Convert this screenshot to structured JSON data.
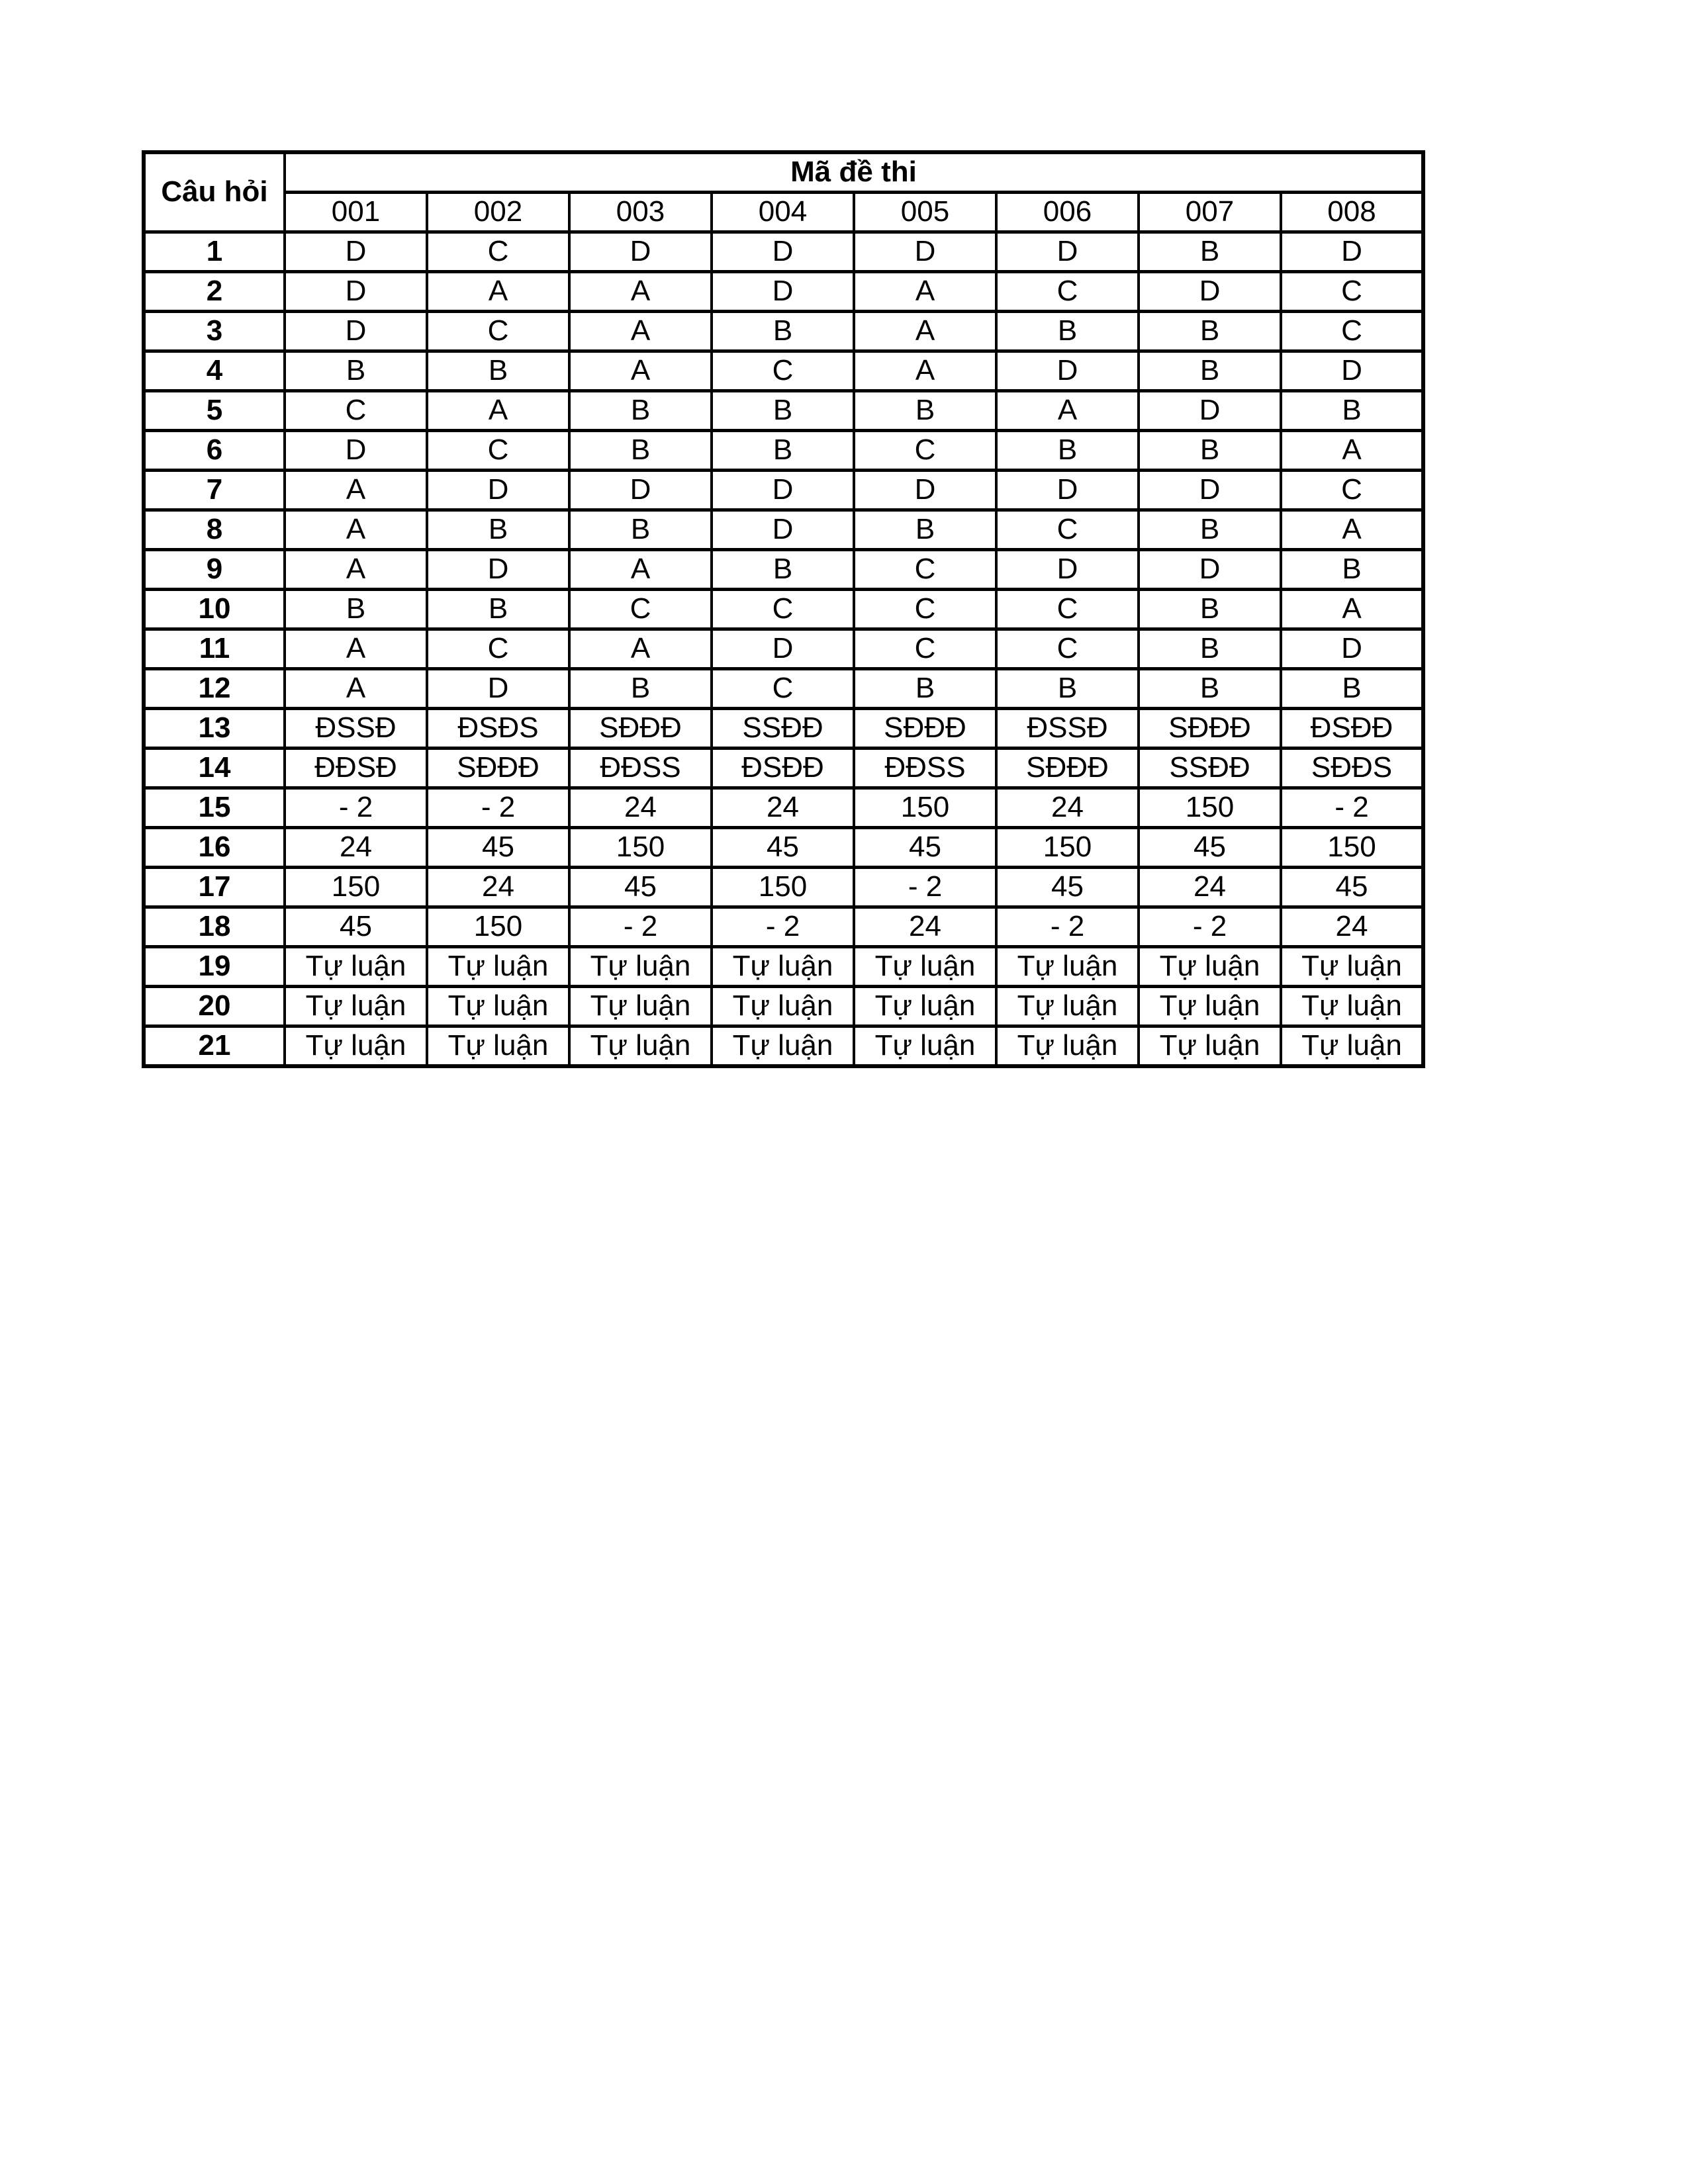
{
  "table": {
    "corner_header": "Câu hỏi",
    "group_header": "Mã đề thi",
    "columns": [
      "001",
      "002",
      "003",
      "004",
      "005",
      "006",
      "007",
      "008"
    ],
    "rows": [
      {
        "q": "1",
        "answers": [
          "D",
          "C",
          "D",
          "D",
          "D",
          "D",
          "B",
          "D"
        ]
      },
      {
        "q": "2",
        "answers": [
          "D",
          "A",
          "A",
          "D",
          "A",
          "C",
          "D",
          "C"
        ]
      },
      {
        "q": "3",
        "answers": [
          "D",
          "C",
          "A",
          "B",
          "A",
          "B",
          "B",
          "C"
        ]
      },
      {
        "q": "4",
        "answers": [
          "B",
          "B",
          "A",
          "C",
          "A",
          "D",
          "B",
          "D"
        ]
      },
      {
        "q": "5",
        "answers": [
          "C",
          "A",
          "B",
          "B",
          "B",
          "A",
          "D",
          "B"
        ]
      },
      {
        "q": "6",
        "answers": [
          "D",
          "C",
          "B",
          "B",
          "C",
          "B",
          "B",
          "A"
        ]
      },
      {
        "q": "7",
        "answers": [
          "A",
          "D",
          "D",
          "D",
          "D",
          "D",
          "D",
          "C"
        ]
      },
      {
        "q": "8",
        "answers": [
          "A",
          "B",
          "B",
          "D",
          "B",
          "C",
          "B",
          "A"
        ]
      },
      {
        "q": "9",
        "answers": [
          "A",
          "D",
          "A",
          "B",
          "C",
          "D",
          "D",
          "B"
        ]
      },
      {
        "q": "10",
        "answers": [
          "B",
          "B",
          "C",
          "C",
          "C",
          "C",
          "B",
          "A"
        ]
      },
      {
        "q": "11",
        "answers": [
          "A",
          "C",
          "A",
          "D",
          "C",
          "C",
          "B",
          "D"
        ]
      },
      {
        "q": "12",
        "answers": [
          "A",
          "D",
          "B",
          "C",
          "B",
          "B",
          "B",
          "B"
        ]
      },
      {
        "q": "13",
        "answers": [
          "ĐSSĐ",
          "ĐSĐS",
          "SĐĐĐ",
          "SSĐĐ",
          "SĐĐĐ",
          "ĐSSĐ",
          "SĐĐĐ",
          "ĐSĐĐ"
        ]
      },
      {
        "q": "14",
        "answers": [
          "ĐĐSĐ",
          "SĐĐĐ",
          "ĐĐSS",
          "ĐSĐĐ",
          "ĐĐSS",
          "SĐĐĐ",
          "SSĐĐ",
          "SĐĐS"
        ]
      },
      {
        "q": "15",
        "answers": [
          "- 2",
          "- 2",
          "24",
          "24",
          "150",
          "24",
          "150",
          "- 2"
        ]
      },
      {
        "q": "16",
        "answers": [
          "24",
          "45",
          "150",
          "45",
          "45",
          "150",
          "45",
          "150"
        ]
      },
      {
        "q": "17",
        "answers": [
          "150",
          "24",
          "45",
          "150",
          "- 2",
          "45",
          "24",
          "45"
        ]
      },
      {
        "q": "18",
        "answers": [
          "45",
          "150",
          "- 2",
          "- 2",
          "24",
          "- 2",
          "- 2",
          "24"
        ]
      },
      {
        "q": "19",
        "answers": [
          "Tự luận",
          "Tự luận",
          "Tự luận",
          "Tự luận",
          "Tự luận",
          "Tự luận",
          "Tự luận",
          "Tự luận"
        ]
      },
      {
        "q": "20",
        "answers": [
          "Tự luận",
          "Tự luận",
          "Tự luận",
          "Tự luận",
          "Tự luận",
          "Tự luận",
          "Tự luận",
          "Tự luận"
        ]
      },
      {
        "q": "21",
        "answers": [
          "Tự luận",
          "Tự luận",
          "Tự luận",
          "Tự luận",
          "Tự luận",
          "Tự luận",
          "Tự luận",
          "Tự luận"
        ]
      }
    ]
  }
}
